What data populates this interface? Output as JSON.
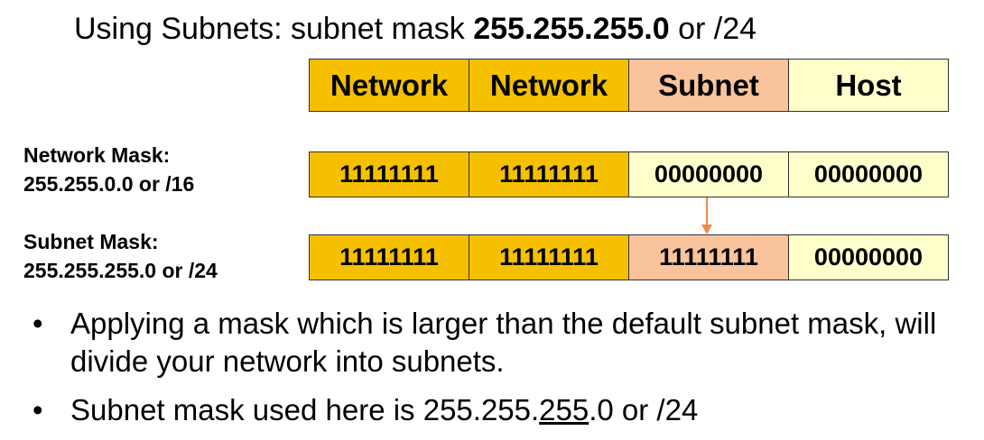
{
  "title": {
    "prefix": "Using Subnets: subnet mask ",
    "mask": "255.255.255.0",
    "suffix": " or /24"
  },
  "colors": {
    "network": "#f5c000",
    "subnet": "#f9c39b",
    "host": "#ffffcc",
    "arrow": "#f08a4b"
  },
  "header": [
    {
      "label": "Network",
      "color": "network"
    },
    {
      "label": "Network",
      "color": "network"
    },
    {
      "label": "Subnet",
      "color": "subnet"
    },
    {
      "label": "Host",
      "color": "host"
    }
  ],
  "network_mask": {
    "label_line1": "Network Mask:",
    "label_line2": "255.255.0.0 or /16",
    "octets": [
      {
        "bits": "11111111",
        "color": "network"
      },
      {
        "bits": "11111111",
        "color": "network"
      },
      {
        "bits": "00000000",
        "color": "host"
      },
      {
        "bits": "00000000",
        "color": "host"
      }
    ]
  },
  "subnet_mask": {
    "label_line1": "Subnet Mask:",
    "label_line2": "255.255.255.0 or /24",
    "octets": [
      {
        "bits": "11111111",
        "color": "network"
      },
      {
        "bits": "11111111",
        "color": "network"
      },
      {
        "bits": "11111111",
        "color": "subnet"
      },
      {
        "bits": "00000000",
        "color": "host"
      }
    ]
  },
  "bullets": {
    "b1": "Applying a mask which is larger than the default subnet mask, will divide your network into subnets.",
    "b2_prefix": "Subnet mask used here is 255.255.",
    "b2_underlined": "255",
    "b2_suffix": ".0 or /24",
    "glyph": "•"
  }
}
